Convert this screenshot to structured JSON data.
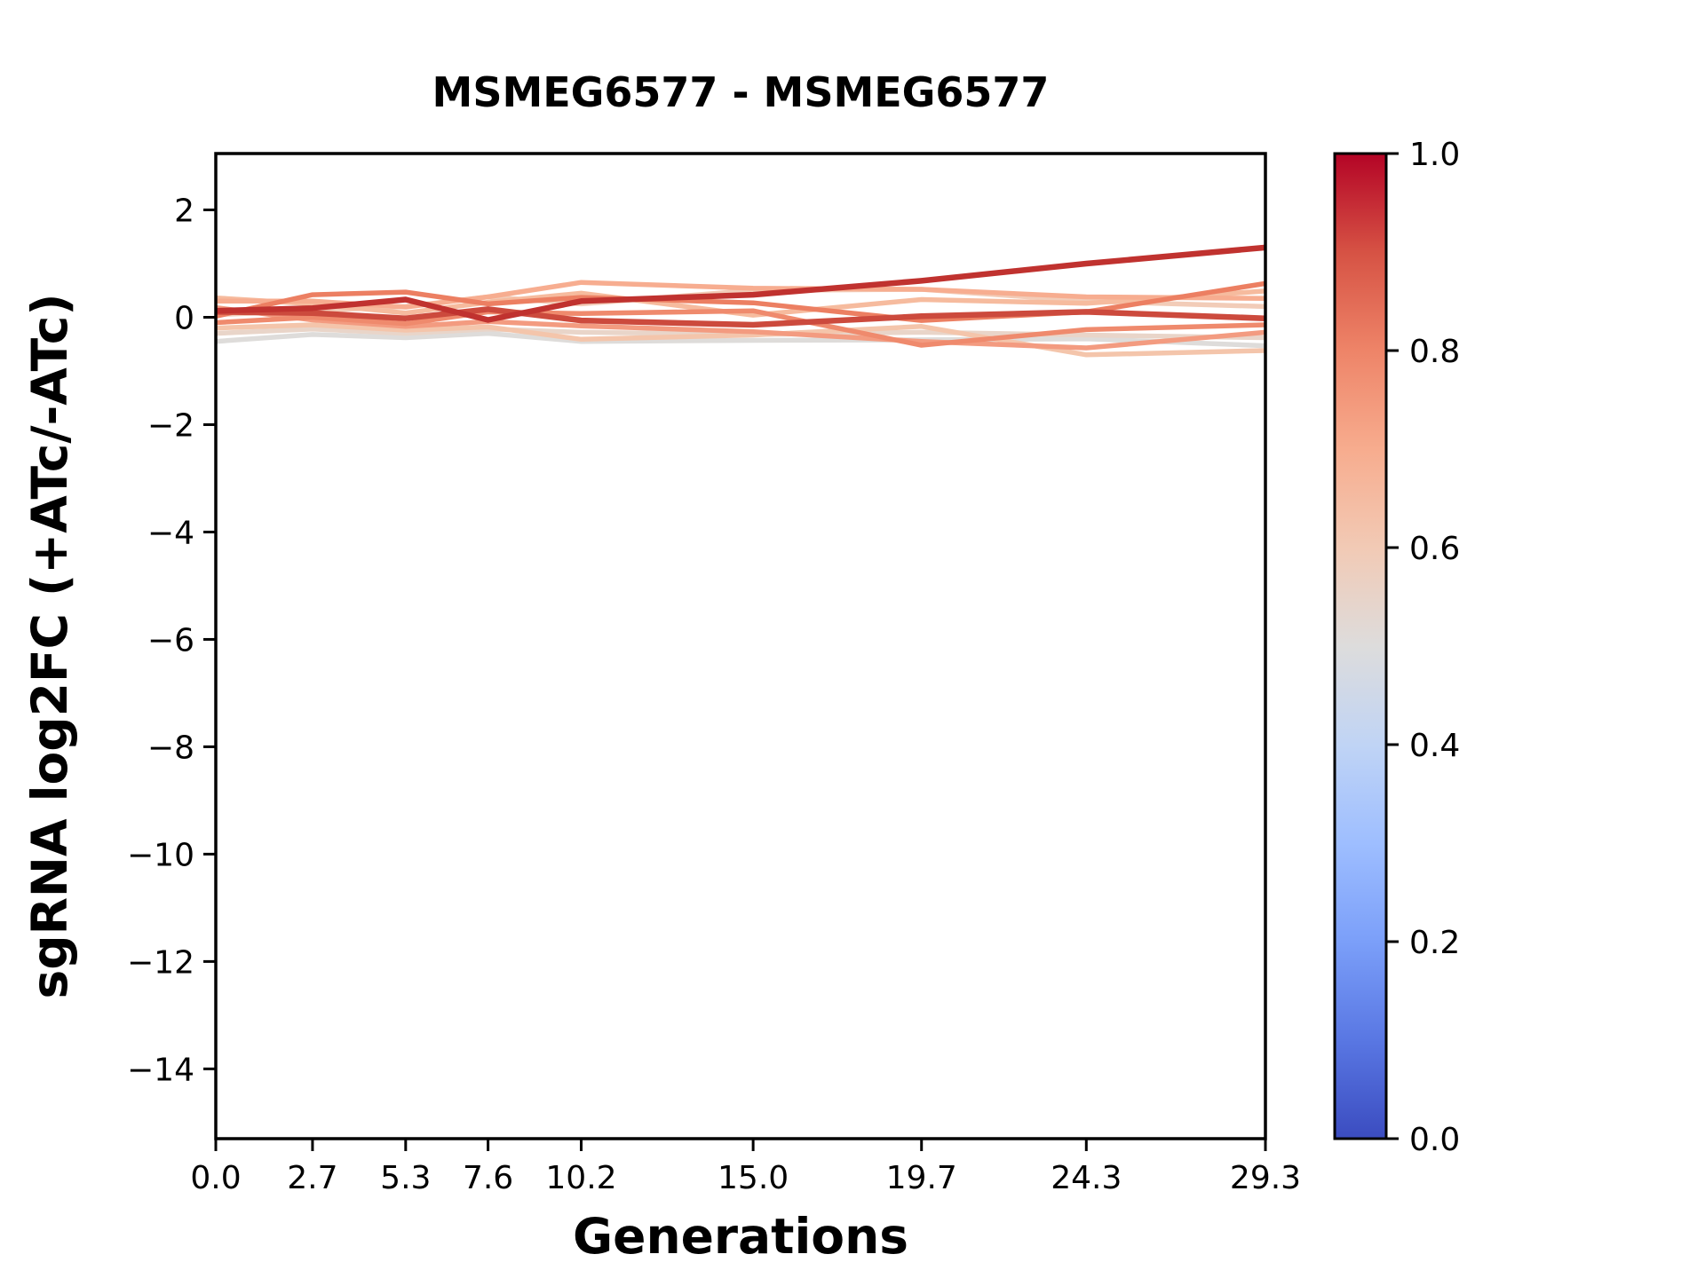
{
  "title": "MSMEG6577 - MSMEG6577",
  "xlabel": "Generations",
  "ylabel": "sgRNA log2FC (+ATc/-ATc)",
  "chart_data": {
    "type": "line",
    "x": [
      0.0,
      2.7,
      5.3,
      7.6,
      10.2,
      15.0,
      19.7,
      24.3,
      29.3
    ],
    "x_tick_labels": [
      "0.0",
      "2.7",
      "5.3",
      "7.6",
      "10.2",
      "15.0",
      "19.7",
      "24.3",
      "29.3"
    ],
    "y_ticks": [
      2,
      0,
      -2,
      -4,
      -6,
      -8,
      -10,
      -12,
      -14
    ],
    "y_tick_labels": [
      "2",
      "0",
      "−2",
      "−4",
      "−6",
      "−8",
      "−10",
      "−12",
      "−14"
    ],
    "xlim": [
      0.0,
      29.3
    ],
    "ylim": [
      -15.3,
      3.05
    ],
    "grid": false,
    "legend": "none",
    "series": [
      {
        "id": "line-1",
        "color_value": 0.95,
        "color": "#c0322f",
        "linewidth": 6.5,
        "values": [
          0.12,
          0.17,
          0.33,
          -0.05,
          0.3,
          0.42,
          0.68,
          1.0,
          1.3
        ]
      },
      {
        "id": "line-2",
        "color_value": 0.9,
        "color": "#cc4a3d",
        "linewidth": 6.5,
        "values": [
          0.1,
          0.08,
          -0.02,
          0.15,
          -0.06,
          -0.14,
          0.02,
          0.1,
          -0.02
        ]
      },
      {
        "id": "line-3",
        "color_value": 0.82,
        "color": "#ec7f62",
        "linewidth": 5.5,
        "values": [
          0.02,
          0.42,
          0.47,
          0.25,
          0.37,
          0.27,
          -0.06,
          0.1,
          0.63
        ]
      },
      {
        "id": "line-4",
        "color_value": 0.79,
        "color": "#ef8a6d",
        "linewidth": 5.5,
        "values": [
          -0.1,
          0.0,
          -0.12,
          0.1,
          0.07,
          0.12,
          -0.52,
          -0.23,
          -0.14
        ]
      },
      {
        "id": "line-5",
        "color_value": 0.76,
        "color": "#f39b80",
        "linewidth": 5.5,
        "values": [
          0.18,
          -0.05,
          -0.17,
          -0.08,
          -0.16,
          -0.27,
          -0.45,
          -0.57,
          -0.28
        ]
      },
      {
        "id": "line-6",
        "color_value": 0.7,
        "color": "#f7ad90",
        "linewidth": 5.5,
        "values": [
          0.3,
          0.3,
          0.19,
          0.38,
          0.65,
          0.54,
          0.52,
          0.38,
          0.35
        ]
      },
      {
        "id": "line-7",
        "color_value": 0.66,
        "color": "#f6bb9e",
        "linewidth": 5.5,
        "values": [
          0.36,
          0.25,
          0.08,
          0.28,
          0.45,
          0.04,
          0.33,
          0.26,
          0.49
        ]
      },
      {
        "id": "line-8",
        "color_value": 0.63,
        "color": "#f4c5ab",
        "linewidth": 5.5,
        "values": [
          -0.2,
          -0.14,
          -0.24,
          -0.18,
          -0.41,
          -0.33,
          -0.17,
          -0.7,
          -0.62
        ]
      },
      {
        "id": "line-9",
        "color_value": 0.6,
        "color": "#f2ccb8",
        "linewidth": 5.5,
        "values": [
          0.05,
          0.12,
          0.2,
          0.38,
          0.25,
          0.5,
          0.52,
          0.3,
          0.2
        ]
      },
      {
        "id": "line-10",
        "color_value": 0.55,
        "color": "#e9d5c9",
        "linewidth": 5.5,
        "values": [
          -0.3,
          -0.22,
          -0.3,
          -0.22,
          -0.28,
          -0.32,
          -0.28,
          -0.33,
          -0.38
        ]
      },
      {
        "id": "line-11",
        "color_value": 0.5,
        "color": "#dedcda",
        "linewidth": 5.5,
        "values": [
          -0.45,
          -0.32,
          -0.38,
          -0.3,
          -0.45,
          -0.43,
          -0.42,
          -0.4,
          -0.53
        ]
      }
    ],
    "colorbar": {
      "colormap": "coolwarm",
      "min": 0.0,
      "max": 1.0,
      "tick_values": [
        0.0,
        0.2,
        0.4,
        0.6,
        0.8,
        1.0
      ],
      "tick_labels": [
        "0.0",
        "0.2",
        "0.4",
        "0.6",
        "0.8",
        "1.0"
      ],
      "stops": [
        {
          "pos": 0.0,
          "color": "#3b4cc0"
        },
        {
          "pos": 0.1,
          "color": "#5977e3"
        },
        {
          "pos": 0.2,
          "color": "#7b9ff9"
        },
        {
          "pos": 0.3,
          "color": "#9ebeff"
        },
        {
          "pos": 0.4,
          "color": "#c0d4f5"
        },
        {
          "pos": 0.5,
          "color": "#dddcdc"
        },
        {
          "pos": 0.6,
          "color": "#f2cab5"
        },
        {
          "pos": 0.7,
          "color": "#f7ac8e"
        },
        {
          "pos": 0.8,
          "color": "#ee8468"
        },
        {
          "pos": 0.9,
          "color": "#d65244"
        },
        {
          "pos": 1.0,
          "color": "#b40426"
        }
      ]
    }
  },
  "colors": {
    "spine": "#000000",
    "background": "#ffffff"
  }
}
